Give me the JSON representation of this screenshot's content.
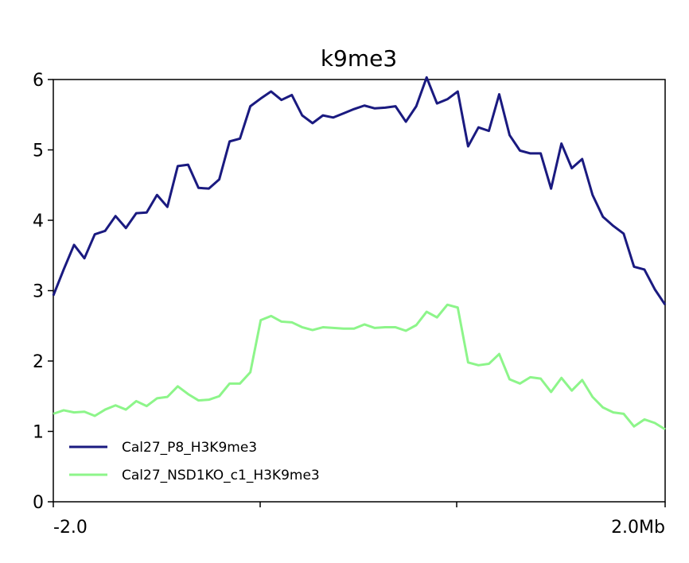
{
  "chart_data": {
    "type": "line",
    "title": "k9me3",
    "xlabel": "",
    "ylabel": "",
    "ylim": [
      0,
      6
    ],
    "y_ticks": [
      "0",
      "1",
      "2",
      "3",
      "4",
      "5",
      "6"
    ],
    "x_tick_labels": [
      "-2.0",
      "",
      "",
      "2.0Mb"
    ],
    "grid": false,
    "legend_position": "lower-left",
    "series": [
      {
        "name": "Cal27_P8_H3K9me3",
        "color": "#1a1a80",
        "values": [
          2.93,
          3.3,
          3.65,
          3.46,
          3.8,
          3.85,
          4.06,
          3.89,
          4.1,
          4.11,
          4.36,
          4.19,
          4.77,
          4.79,
          4.46,
          4.45,
          4.58,
          5.12,
          5.16,
          5.62,
          5.73,
          5.83,
          5.71,
          5.78,
          5.49,
          5.38,
          5.49,
          5.46,
          5.52,
          5.58,
          5.63,
          5.59,
          5.6,
          5.62,
          5.4,
          5.62,
          6.03,
          5.66,
          5.72,
          5.83,
          5.05,
          5.32,
          5.27,
          5.79,
          5.21,
          4.99,
          4.95,
          4.95,
          4.45,
          5.09,
          4.74,
          4.87,
          4.36,
          4.05,
          3.92,
          3.81,
          3.34,
          3.3,
          3.02,
          2.8
        ]
      },
      {
        "name": "Cal27_NSD1KO_c1_H3K9me3",
        "color": "#8df58a",
        "values": [
          1.25,
          1.3,
          1.27,
          1.28,
          1.22,
          1.31,
          1.37,
          1.31,
          1.43,
          1.36,
          1.47,
          1.49,
          1.64,
          1.53,
          1.44,
          1.45,
          1.5,
          1.68,
          1.68,
          1.84,
          2.58,
          2.64,
          2.56,
          2.55,
          2.48,
          2.44,
          2.48,
          2.47,
          2.46,
          2.46,
          2.52,
          2.47,
          2.48,
          2.48,
          2.43,
          2.51,
          2.7,
          2.62,
          2.8,
          2.76,
          1.98,
          1.94,
          1.96,
          2.1,
          1.74,
          1.68,
          1.77,
          1.75,
          1.56,
          1.76,
          1.58,
          1.73,
          1.49,
          1.34,
          1.27,
          1.25,
          1.07,
          1.17,
          1.12,
          1.03
        ]
      }
    ]
  }
}
